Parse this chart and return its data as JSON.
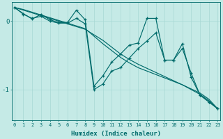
{
  "xlabel": "Humidex (Indice chaleur)",
  "bg_color": "#c5eae6",
  "line_color": "#006b6b",
  "grid_color": "#a8d8d4",
  "xticks": [
    0,
    1,
    2,
    3,
    4,
    5,
    6,
    7,
    8,
    9,
    10,
    11,
    12,
    13,
    14,
    15,
    16,
    17,
    18,
    19,
    20,
    21,
    22,
    23
  ],
  "yticks": [
    0,
    -1
  ],
  "xlim": [
    -0.3,
    23.3
  ],
  "ylim": [
    -1.45,
    0.28
  ],
  "series": [
    {
      "x": [
        0,
        1,
        2,
        3,
        4,
        5,
        6,
        7,
        8,
        9,
        10,
        11,
        12,
        13,
        14,
        15,
        16,
        17,
        18,
        19,
        20,
        21,
        22,
        23
      ],
      "y": [
        0.2,
        0.11,
        0.03,
        0.1,
        0.02,
        -0.02,
        -0.02,
        0.16,
        0.02,
        -0.95,
        -0.8,
        -0.6,
        -0.48,
        -0.35,
        -0.32,
        0.04,
        0.04,
        -0.57,
        -0.57,
        -0.33,
        -0.82,
        -1.08,
        -1.18,
        -1.28
      ],
      "marker": true,
      "lw": 1.0
    },
    {
      "x": [
        0,
        1,
        2,
        3,
        4,
        5,
        6,
        7,
        8,
        9,
        10,
        11,
        12,
        13,
        14,
        15,
        16,
        17,
        18,
        19,
        20,
        21,
        22,
        23
      ],
      "y": [
        0.2,
        0.1,
        0.04,
        0.07,
        0.0,
        -0.03,
        -0.03,
        0.04,
        -0.04,
        -1.0,
        -0.92,
        -0.73,
        -0.68,
        -0.54,
        -0.4,
        -0.29,
        -0.17,
        -0.57,
        -0.57,
        -0.4,
        -0.76,
        -1.08,
        -1.18,
        -1.28
      ],
      "marker": true,
      "lw": 1.0
    },
    {
      "x": [
        0,
        23
      ],
      "y": [
        0.2,
        -1.28
      ],
      "marker": false,
      "lw": 1.0
    },
    {
      "x": [
        0,
        23
      ],
      "y": [
        0.2,
        -1.28
      ],
      "marker": false,
      "lw": 1.0
    }
  ],
  "diag1": [
    0.2,
    0.17,
    0.13,
    0.09,
    0.05,
    0.01,
    -0.03,
    -0.07,
    -0.11,
    -0.22,
    -0.33,
    -0.43,
    -0.53,
    -0.61,
    -0.68,
    -0.73,
    -0.78,
    -0.83,
    -0.88,
    -0.93,
    -0.99,
    -1.05,
    -1.14,
    -1.28
  ],
  "diag2": [
    0.2,
    0.16,
    0.12,
    0.08,
    0.04,
    0.0,
    -0.04,
    -0.08,
    -0.12,
    -0.2,
    -0.28,
    -0.38,
    -0.48,
    -0.56,
    -0.63,
    -0.69,
    -0.75,
    -0.81,
    -0.87,
    -0.93,
    -1.0,
    -1.07,
    -1.16,
    -1.28
  ]
}
